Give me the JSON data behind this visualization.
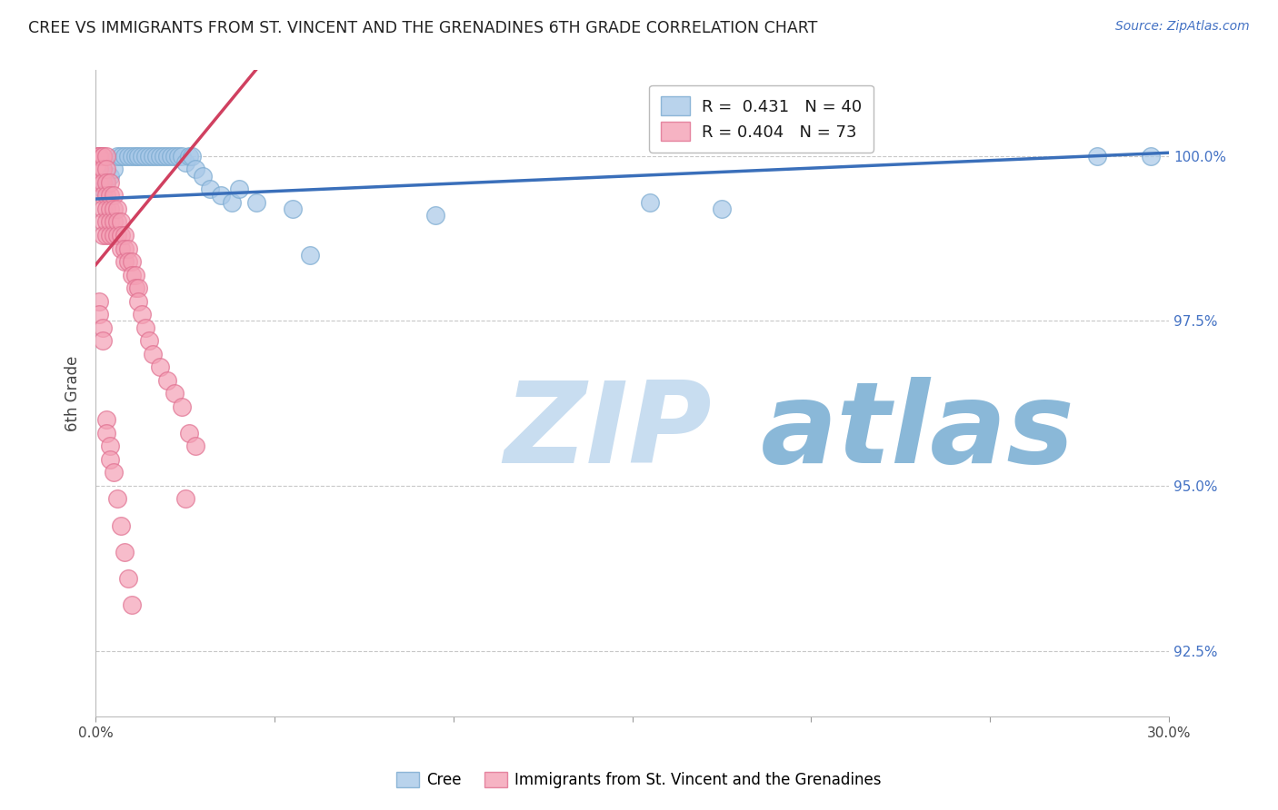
{
  "title": "CREE VS IMMIGRANTS FROM ST. VINCENT AND THE GRENADINES 6TH GRADE CORRELATION CHART",
  "source": "Source: ZipAtlas.com",
  "ylabel": "6th Grade",
  "xlim": [
    0.0,
    0.3
  ],
  "ylim": [
    91.5,
    101.3
  ],
  "xticks": [
    0.0,
    0.05,
    0.1,
    0.15,
    0.2,
    0.25,
    0.3
  ],
  "xticklabels": [
    "0.0%",
    "",
    "",
    "",
    "",
    "",
    "30.0%"
  ],
  "yticks": [
    92.5,
    95.0,
    97.5,
    100.0
  ],
  "yticklabels": [
    "92.5%",
    "95.0%",
    "97.5%",
    "100.0%"
  ],
  "legend1_label": "Cree",
  "legend2_label": "Immigrants from St. Vincent and the Grenadines",
  "R_blue": 0.431,
  "N_blue": 40,
  "R_pink": 0.404,
  "N_pink": 73,
  "blue_color": "#a8c8e8",
  "pink_color": "#f4a0b5",
  "blue_line_color": "#3a6fba",
  "pink_line_color": "#d04060",
  "watermark_zip": "ZIP",
  "watermark_atlas": "atlas",
  "watermark_color_zip": "#c8ddf0",
  "watermark_color_atlas": "#8ab8d8",
  "blue_scatter_x": [
    0.002,
    0.003,
    0.004,
    0.005,
    0.006,
    0.007,
    0.008,
    0.009,
    0.01,
    0.011,
    0.012,
    0.013,
    0.014,
    0.015,
    0.016,
    0.017,
    0.018,
    0.019,
    0.02,
    0.021,
    0.022,
    0.023,
    0.024,
    0.025,
    0.026,
    0.027,
    0.028,
    0.03,
    0.032,
    0.035,
    0.038,
    0.04,
    0.045,
    0.055,
    0.06,
    0.095,
    0.155,
    0.175,
    0.28,
    0.295
  ],
  "blue_scatter_y": [
    99.5,
    99.6,
    99.7,
    99.8,
    100.0,
    100.0,
    100.0,
    100.0,
    100.0,
    100.0,
    100.0,
    100.0,
    100.0,
    100.0,
    100.0,
    100.0,
    100.0,
    100.0,
    100.0,
    100.0,
    100.0,
    100.0,
    100.0,
    99.9,
    100.0,
    100.0,
    99.8,
    99.7,
    99.5,
    99.4,
    99.3,
    99.5,
    99.3,
    99.2,
    98.5,
    99.1,
    99.3,
    99.2,
    100.0,
    100.0
  ],
  "pink_scatter_x": [
    0.001,
    0.001,
    0.001,
    0.001,
    0.001,
    0.001,
    0.001,
    0.002,
    0.002,
    0.002,
    0.002,
    0.002,
    0.002,
    0.002,
    0.002,
    0.003,
    0.003,
    0.003,
    0.003,
    0.003,
    0.003,
    0.003,
    0.004,
    0.004,
    0.004,
    0.004,
    0.004,
    0.005,
    0.005,
    0.005,
    0.005,
    0.006,
    0.006,
    0.006,
    0.007,
    0.007,
    0.007,
    0.008,
    0.008,
    0.008,
    0.009,
    0.009,
    0.01,
    0.01,
    0.011,
    0.011,
    0.012,
    0.012,
    0.013,
    0.014,
    0.015,
    0.016,
    0.018,
    0.02,
    0.022,
    0.024,
    0.026,
    0.028,
    0.001,
    0.001,
    0.002,
    0.002,
    0.003,
    0.003,
    0.004,
    0.004,
    0.005,
    0.006,
    0.007,
    0.008,
    0.009,
    0.01,
    0.025
  ],
  "pink_scatter_y": [
    100.0,
    100.0,
    100.0,
    100.0,
    100.0,
    99.8,
    99.6,
    100.0,
    100.0,
    99.8,
    99.6,
    99.4,
    99.2,
    99.0,
    98.8,
    100.0,
    99.8,
    99.6,
    99.4,
    99.2,
    99.0,
    98.8,
    99.6,
    99.4,
    99.2,
    99.0,
    98.8,
    99.4,
    99.2,
    99.0,
    98.8,
    99.2,
    99.0,
    98.8,
    99.0,
    98.8,
    98.6,
    98.8,
    98.6,
    98.4,
    98.6,
    98.4,
    98.4,
    98.2,
    98.2,
    98.0,
    98.0,
    97.8,
    97.6,
    97.4,
    97.2,
    97.0,
    96.8,
    96.6,
    96.4,
    96.2,
    95.8,
    95.6,
    97.8,
    97.6,
    97.4,
    97.2,
    96.0,
    95.8,
    95.6,
    95.4,
    95.2,
    94.8,
    94.4,
    94.0,
    93.6,
    93.2,
    94.8
  ],
  "blue_trend_x0": 0.0,
  "blue_trend_y0": 99.35,
  "blue_trend_x1": 0.3,
  "blue_trend_y1": 100.05,
  "pink_trend_x0": 0.0,
  "pink_trend_y0": 98.35,
  "pink_trend_x1": 0.025,
  "pink_trend_y1": 100.0
}
